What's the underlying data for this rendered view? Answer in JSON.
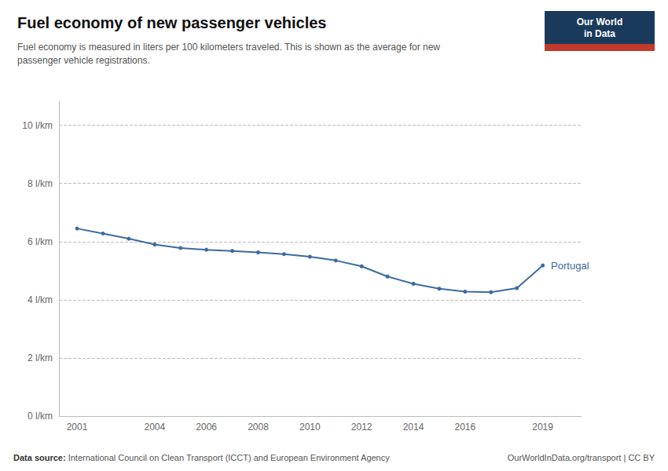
{
  "chart_data": {
    "type": "line",
    "title": "Fuel economy of new passenger vehicles",
    "subtitle": "Fuel economy is measured in liters per 100 kilometers traveled. This is shown as the average for new\npassenger vehicle registrations.",
    "x": [
      2001,
      2002,
      2003,
      2004,
      2005,
      2006,
      2007,
      2008,
      2009,
      2010,
      2011,
      2012,
      2013,
      2014,
      2015,
      2016,
      2017,
      2018,
      2019
    ],
    "series": [
      {
        "name": "Portugal",
        "color": "#3d6b9e",
        "marker": "circle",
        "values": [
          6.45,
          6.28,
          6.1,
          5.9,
          5.78,
          5.72,
          5.68,
          5.63,
          5.57,
          5.48,
          5.35,
          5.15,
          4.8,
          4.55,
          4.38,
          4.28,
          4.26,
          4.4,
          5.18
        ]
      }
    ],
    "xlim": [
      2000.3,
      2020.5
    ],
    "xticks": [
      2001,
      2004,
      2006,
      2008,
      2010,
      2012,
      2014,
      2016,
      2019
    ],
    "ylim": [
      0,
      10.8
    ],
    "yticks": [
      {
        "value": 0,
        "label": "0 l/km"
      },
      {
        "value": 2,
        "label": "2 l/km"
      },
      {
        "value": 4,
        "label": "4 l/km"
      },
      {
        "value": 6,
        "label": "6 l/km"
      },
      {
        "value": 8,
        "label": "8 l/km"
      },
      {
        "value": 10,
        "label": "10 l/km"
      }
    ],
    "grid": true,
    "source_label": "Data source:",
    "source": "International Council on Clean Transport (ICCT) and European Environment Agency",
    "credit": "OurWorldInData.org/transport | CC BY",
    "badge": {
      "text": "Our World\nin Data",
      "color": "#1a3a5c",
      "stripe_color": "#c0392b"
    }
  }
}
